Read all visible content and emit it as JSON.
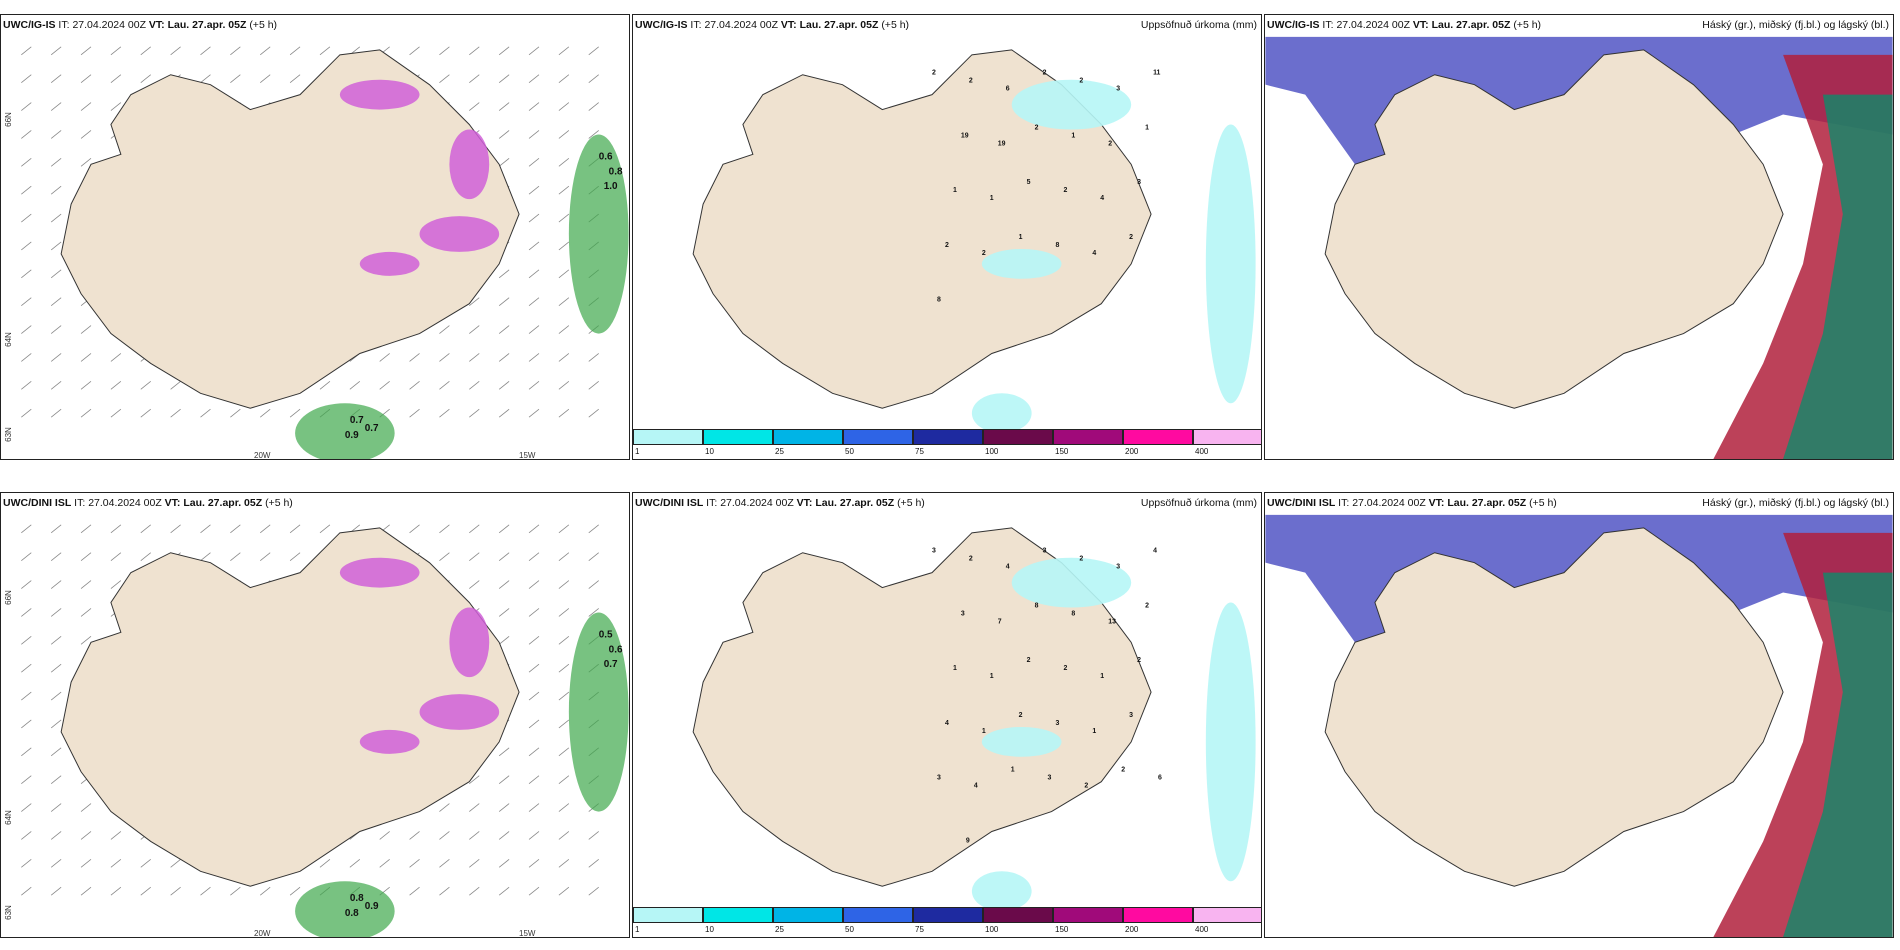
{
  "rows": [
    {
      "model": "UWC/IG-IS",
      "it_label": "IT:",
      "it_value": "27.04.2024 00Z",
      "vt_label": "VT:",
      "vt_value": "Lau. 27.apr. 05Z",
      "lead": "(+5 h)"
    },
    {
      "model": "UWC/DINI ISL",
      "it_label": "IT:",
      "it_value": "27.04.2024 00Z",
      "vt_label": "VT:",
      "vt_value": "Lau. 27.apr. 05Z",
      "lead": "(+5 h)"
    }
  ],
  "precip_title": "Uppsöfnuð úrkoma (mm)",
  "cloud_title": "Háský (gr.), miðský (fj.bl.) og lágský (bl.)",
  "axis_labels": {
    "lon_left": "20W",
    "lon_right": "15W",
    "lat_top": "66N",
    "lat_mid": "64N",
    "lat_bottom": "63N"
  },
  "colorbar": {
    "labels": [
      "1",
      "10",
      "25",
      "50",
      "75",
      "100",
      "150",
      "200",
      "400"
    ],
    "colors": [
      "#b6f6f6",
      "#00e6e6",
      "#00b4e6",
      "#2e64e6",
      "#1e2aa0",
      "#6a0a4a",
      "#a00a7a",
      "#ff0aa0",
      "#f8b4f0"
    ]
  },
  "colors": {
    "land": "#efe2d0",
    "wind_green": "#3fa84c",
    "snow_magenta": "#d060d8",
    "high_cloud": "#5b5ec8",
    "mid_cloud": "#b0203c",
    "low_cloud": "#0f8a6a"
  },
  "precip_top_values": [
    "2",
    "2",
    "6",
    "2",
    "2",
    "3",
    "11",
    "19",
    "19",
    "2",
    "1",
    "2",
    "1",
    "1",
    "1",
    "5",
    "2",
    "4",
    "3",
    "2",
    "2",
    "1",
    "8",
    "4",
    "2",
    "8"
  ],
  "precip_bottom_values": [
    "3",
    "2",
    "4",
    "3",
    "2",
    "3",
    "4",
    "3",
    "7",
    "8",
    "8",
    "13",
    "2",
    "1",
    "1",
    "2",
    "2",
    "1",
    "2",
    "4",
    "1",
    "2",
    "3",
    "1",
    "3",
    "3",
    "4",
    "1",
    "3",
    "2",
    "2",
    "6",
    "9"
  ],
  "wind_top_values": [
    "0.6",
    "0.8",
    "1.0",
    "0.7",
    "0.7",
    "0.9"
  ],
  "wind_bottom_values": [
    "0.5",
    "0.6",
    "0.7",
    "0.8",
    "0.9",
    "0.8"
  ]
}
